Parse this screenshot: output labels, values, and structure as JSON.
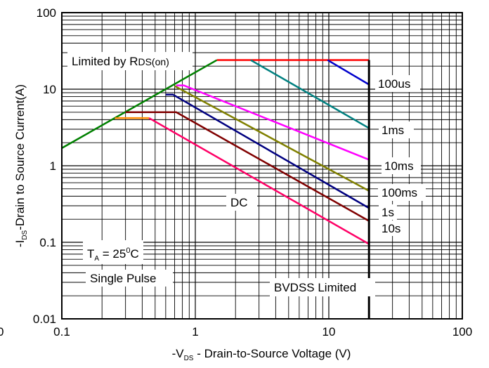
{
  "chart_data": {
    "type": "line",
    "x_scale": "log",
    "y_scale": "log",
    "xlim": [
      0.1,
      100
    ],
    "ylim": [
      0.01,
      100
    ],
    "grid": true,
    "xlabel": {
      "main": "-V",
      "sub": "DS",
      "rest": " - Drain-to-Source Voltage (V)"
    },
    "ylabel": {
      "main": "-I",
      "sub": "DS",
      "rest": "-Drain to Source Current(A)"
    },
    "x_ticks": [
      {
        "value": 0.1,
        "label": "0.1"
      },
      {
        "value": 1,
        "label": "1"
      },
      {
        "value": 10,
        "label": "10"
      },
      {
        "value": 100,
        "label": "100"
      }
    ],
    "x_edge_label": "0",
    "y_ticks": [
      {
        "value": 0.01,
        "label": "0.01"
      },
      {
        "value": 0.1,
        "label": "0.1"
      },
      {
        "value": 1,
        "label": "1"
      },
      {
        "value": 10,
        "label": "10"
      },
      {
        "value": 100,
        "label": "100"
      }
    ],
    "series": [
      {
        "color": "#008000",
        "points": [
          [
            0.1,
            1.7
          ],
          [
            1.45,
            24
          ]
        ]
      },
      {
        "color": "#ff0000",
        "points": [
          [
            1.45,
            24
          ],
          [
            20,
            24
          ]
        ]
      },
      {
        "color": "#0000cc",
        "points": [
          [
            9.8,
            24
          ],
          [
            20,
            11.5
          ]
        ]
      },
      {
        "color": "#008080",
        "points": [
          [
            2.6,
            24
          ],
          [
            20,
            3.1
          ]
        ]
      },
      {
        "color": "#ff00ff",
        "points": [
          [
            0.72,
            11.2
          ],
          [
            0.82,
            11.2
          ],
          [
            20,
            1.2
          ]
        ]
      },
      {
        "color": "#808000",
        "points": [
          [
            0.7,
            11
          ],
          [
            20,
            0.47
          ]
        ]
      },
      {
        "color": "#000080",
        "points": [
          [
            0.6,
            8.5
          ],
          [
            0.68,
            8.5
          ],
          [
            20,
            0.28
          ]
        ]
      },
      {
        "color": "#800000",
        "points": [
          [
            0.3,
            5.0
          ],
          [
            0.72,
            5.0
          ],
          [
            20,
            0.19
          ]
        ]
      },
      {
        "color": "#ff8c00",
        "points": [
          [
            0.25,
            4.2
          ],
          [
            0.45,
            4.2
          ]
        ]
      },
      {
        "color": "#ff0066",
        "points": [
          [
            0.45,
            4.2
          ],
          [
            20,
            0.095
          ]
        ]
      },
      {
        "color": "#000000",
        "points": [
          [
            20,
            0.01
          ],
          [
            20,
            24
          ]
        ],
        "width": 3
      }
    ],
    "annotations": {
      "limited_by": {
        "main": "Limited by R",
        "sub": "DS(on)"
      },
      "labels": [
        "100us",
        "1ms",
        "10ms",
        "100ms",
        "1s",
        "10s",
        "DC",
        "BVDSS Limited"
      ],
      "ta": {
        "main": "T",
        "sub": "A",
        "eq": " = 25",
        "sup": "0",
        "unit": "C"
      },
      "single_pulse": "Single Pulse"
    }
  }
}
